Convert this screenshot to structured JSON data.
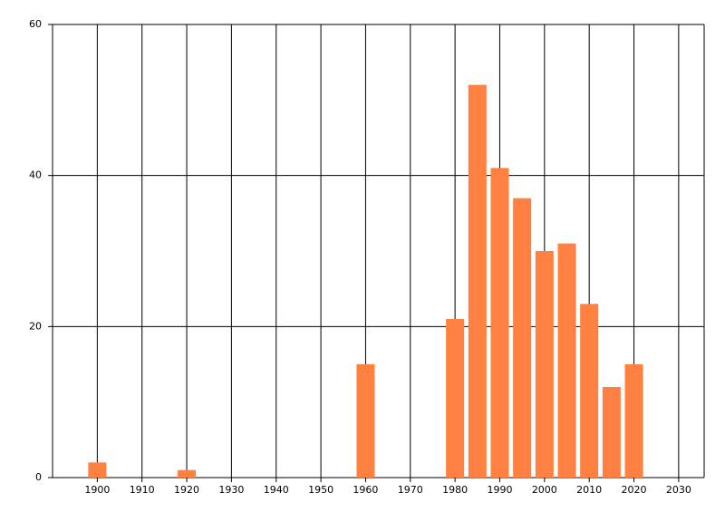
{
  "chart_data": {
    "type": "bar",
    "x": [
      1900,
      1920,
      1960,
      1980,
      1985,
      1990,
      1995,
      2000,
      2005,
      2010,
      2015,
      2020
    ],
    "values": [
      2,
      1,
      15,
      21,
      52,
      41,
      37,
      30,
      31,
      23,
      12,
      15
    ],
    "color": "#ff8040",
    "xlim": [
      1890,
      2035.7
    ],
    "xticks": [
      1900,
      1910,
      1920,
      1930,
      1940,
      1950,
      1960,
      1970,
      1980,
      1990,
      2000,
      2010,
      2020,
      2030
    ],
    "ylim": [
      0,
      60
    ],
    "yticks": [
      0,
      20,
      40,
      60
    ],
    "grid": true
  }
}
